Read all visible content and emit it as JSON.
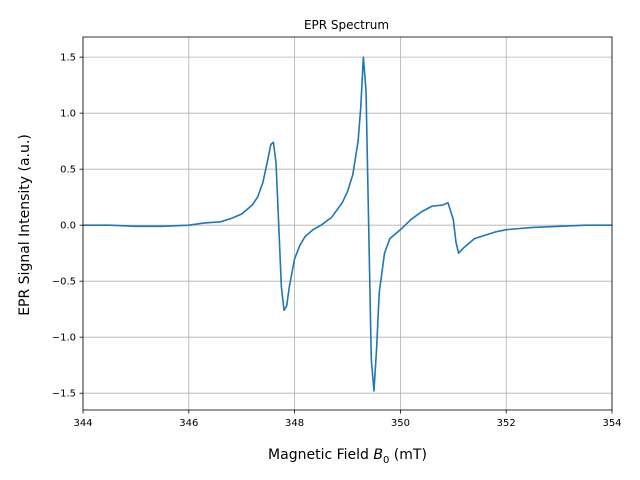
{
  "chart_data": {
    "type": "line",
    "title": "EPR Spectrum",
    "xlabel_prefix": "Magnetic Field ",
    "xlabel_symbol": "B",
    "xlabel_subscript": "0",
    "xlabel_suffix": " (mT)",
    "ylabel": "EPR Signal Intensity (a.u.)",
    "xlim": [
      344,
      354
    ],
    "ylim": [
      -1.65,
      1.68
    ],
    "xticks": [
      344,
      346,
      348,
      350,
      352,
      354
    ],
    "xtick_labels": [
      "344",
      "346",
      "348",
      "350",
      "352",
      "354"
    ],
    "yticks": [
      -1.5,
      -1.0,
      -0.5,
      0.0,
      0.5,
      1.0,
      1.5
    ],
    "ytick_labels": [
      "−1.5",
      "−1.0",
      "−0.5",
      "0.0",
      "0.5",
      "1.0",
      "1.5"
    ],
    "grid": true,
    "series": [
      {
        "color": "#1f77b4",
        "x": [
          344.0,
          344.5,
          345.0,
          345.5,
          346.0,
          346.3,
          346.6,
          346.8,
          347.0,
          347.2,
          347.3,
          347.4,
          347.5,
          347.55,
          347.6,
          347.65,
          347.7,
          347.75,
          347.8,
          347.85,
          347.9,
          348.0,
          348.1,
          348.2,
          348.35,
          348.5,
          348.7,
          348.9,
          349.0,
          349.1,
          349.2,
          349.25,
          349.3,
          349.35,
          349.4,
          349.45,
          349.5,
          349.55,
          349.6,
          349.7,
          349.8,
          350.0,
          350.2,
          350.4,
          350.6,
          350.8,
          350.9,
          351.0,
          351.05,
          351.1,
          351.2,
          351.4,
          351.6,
          351.8,
          352.0,
          352.5,
          353.0,
          353.5,
          354.0
        ],
        "y": [
          0.0,
          0.0,
          -0.01,
          -0.01,
          0.0,
          0.02,
          0.03,
          0.06,
          0.1,
          0.18,
          0.25,
          0.38,
          0.6,
          0.72,
          0.74,
          0.55,
          0.0,
          -0.55,
          -0.76,
          -0.72,
          -0.55,
          -0.3,
          -0.18,
          -0.1,
          -0.04,
          0.0,
          0.07,
          0.2,
          0.3,
          0.45,
          0.75,
          1.05,
          1.5,
          1.2,
          0.0,
          -1.2,
          -1.48,
          -1.1,
          -0.6,
          -0.25,
          -0.12,
          -0.04,
          0.05,
          0.12,
          0.17,
          0.18,
          0.2,
          0.05,
          -0.15,
          -0.25,
          -0.2,
          -0.12,
          -0.09,
          -0.06,
          -0.04,
          -0.02,
          -0.01,
          0.0,
          0.0
        ]
      }
    ]
  }
}
